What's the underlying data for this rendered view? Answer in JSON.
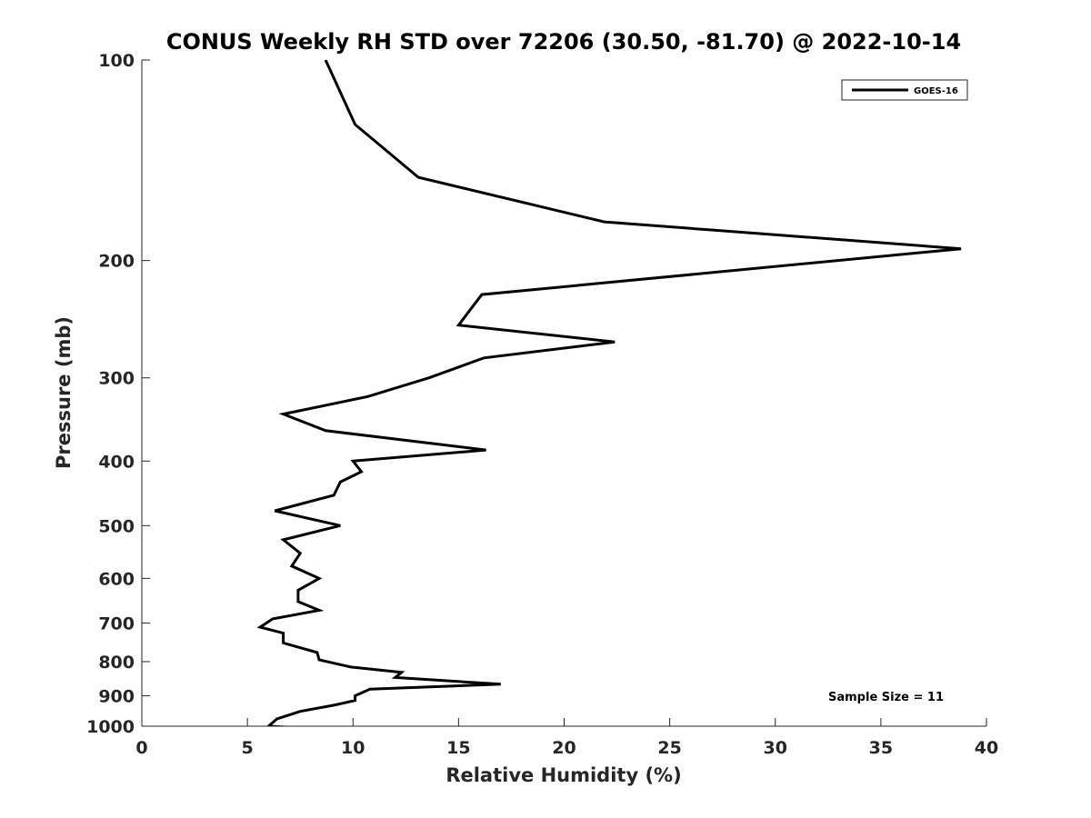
{
  "chart_data": {
    "type": "line",
    "title": "CONUS Weekly RH STD over 72206 (30.50, -81.70) @ 2022-10-14",
    "xlabel": "Relative Humidity (%)",
    "ylabel": "Pressure (mb)",
    "xlim": [
      0,
      40
    ],
    "ylim": [
      100,
      1000
    ],
    "y_scale": "log",
    "y_direction": "reversed",
    "xticks": [
      0,
      5,
      10,
      15,
      20,
      25,
      30,
      35,
      40
    ],
    "yticks": [
      100,
      200,
      300,
      400,
      500,
      600,
      700,
      800,
      900,
      1000
    ],
    "grid": false,
    "legend_position": "top-right",
    "series": [
      {
        "name": "GOES-16",
        "color": "#000000",
        "x": [
          8.7,
          10.1,
          13.1,
          21.9,
          38.8,
          16.1,
          15.0,
          22.4,
          16.2,
          13.6,
          10.7,
          6.7,
          8.7,
          16.3,
          10.0,
          10.4,
          9.4,
          9.1,
          6.3,
          9.4,
          6.7,
          7.5,
          7.1,
          8.4,
          7.4,
          7.4,
          8.4,
          6.2,
          5.6,
          6.7,
          6.7,
          8.3,
          8.4,
          9.9,
          12.3,
          12.0,
          17.0,
          10.8,
          10.1,
          10.1,
          9.1,
          7.5,
          6.4,
          6.0,
          8.6
        ],
        "y": [
          100,
          125,
          150,
          175,
          192,
          225,
          250,
          265,
          280,
          300,
          320,
          340,
          360,
          385,
          400,
          415,
          430,
          450,
          475,
          500,
          525,
          550,
          575,
          600,
          625,
          650,
          670,
          690,
          710,
          725,
          750,
          775,
          795,
          815,
          830,
          845,
          865,
          880,
          900,
          915,
          930,
          950,
          975,
          1000,
          1010
        ]
      }
    ],
    "annotations": [
      "Sample Size = 11"
    ]
  }
}
